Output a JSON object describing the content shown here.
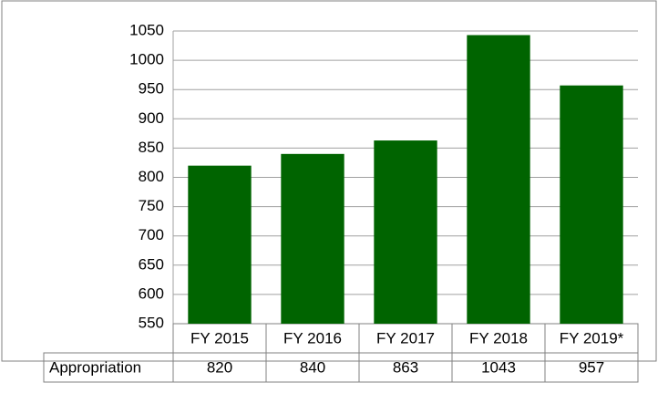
{
  "chart_data": {
    "type": "bar",
    "categories": [
      "FY 2015",
      "FY 2016",
      "FY 2017",
      "FY 2018",
      "FY 2019*"
    ],
    "series": [
      {
        "name": "Appropriation",
        "color": "#006400",
        "values": [
          820,
          840,
          863,
          1043,
          957
        ]
      }
    ],
    "ylim": [
      550,
      1050
    ],
    "yticks": [
      550,
      600,
      650,
      700,
      750,
      800,
      850,
      900,
      950,
      1000,
      1050
    ],
    "grid": true
  }
}
